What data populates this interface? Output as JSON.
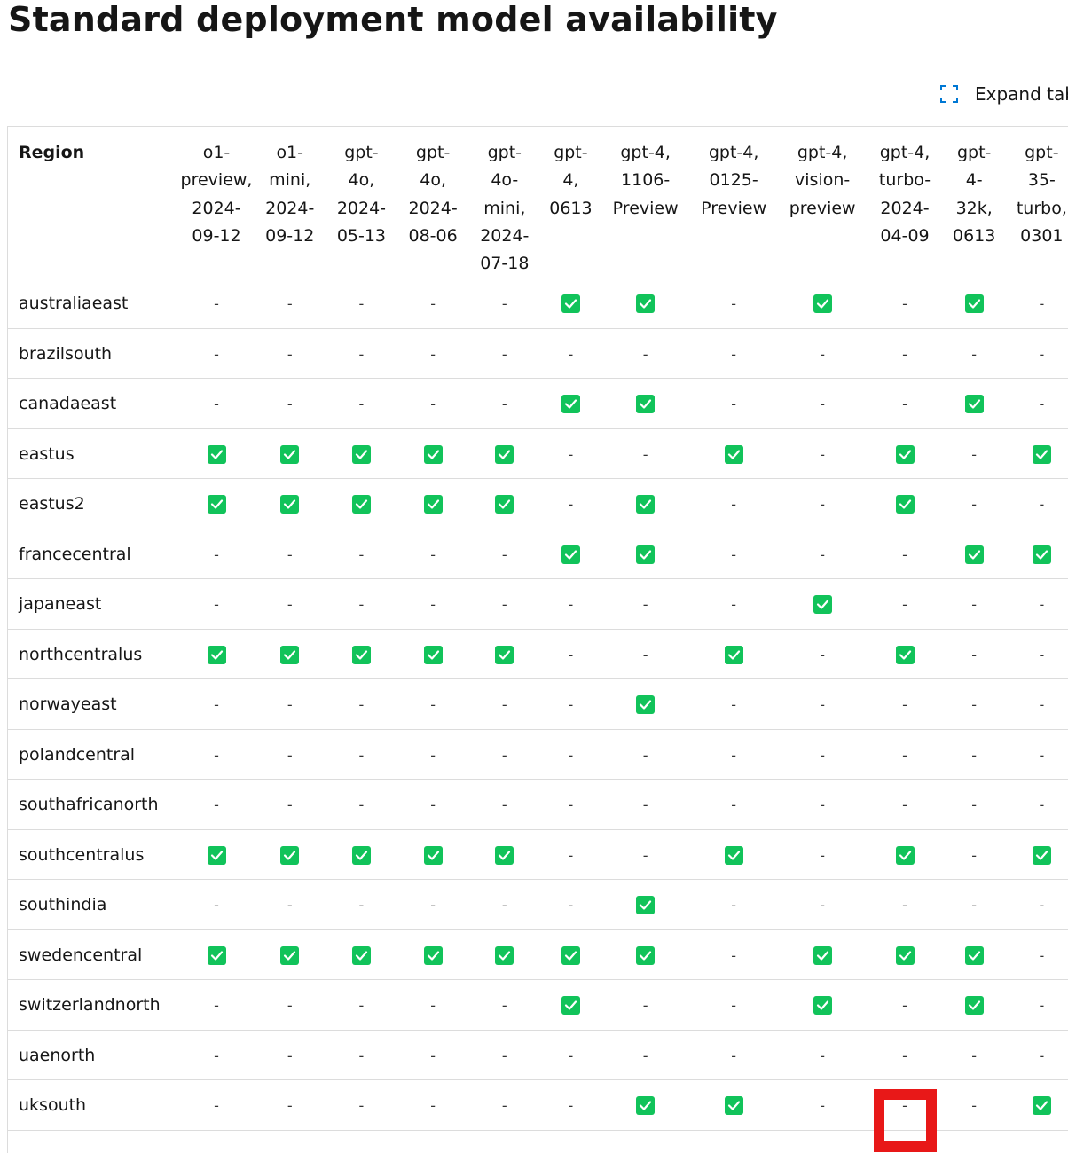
{
  "page": {
    "title": "Standard deployment model availability",
    "expand_label": "Expand table",
    "accent": "#0078d4",
    "check_color": "#11c35a",
    "highlight_color": "#e81818"
  },
  "table": {
    "region_header": "Region",
    "columns": [
      "o1-\npreview,\n2024-\n09-12",
      "o1-\nmini,\n2024-\n09-12",
      "gpt-\n4o,\n2024-\n05-13",
      "gpt-\n4o,\n2024-\n08-06",
      "gpt-\n4o-\nmini,\n2024-\n07-18",
      "gpt-\n4,\n0613",
      "gpt-4,\n1106-\nPreview",
      "gpt-4,\n0125-\nPreview",
      "gpt-4,\nvision-\npreview",
      "gpt-4,\nturbo-\n2024-\n04-09",
      "gpt-\n4-\n32k,\n0613",
      "gpt-\n35-\nturbo,\n0301"
    ],
    "unavailable_symbol": "-",
    "rows": [
      {
        "region": "australiaeast",
        "cells": [
          0,
          0,
          0,
          0,
          0,
          1,
          1,
          0,
          1,
          0,
          1,
          0
        ]
      },
      {
        "region": "brazilsouth",
        "cells": [
          0,
          0,
          0,
          0,
          0,
          0,
          0,
          0,
          0,
          0,
          0,
          0
        ]
      },
      {
        "region": "canadaeast",
        "cells": [
          0,
          0,
          0,
          0,
          0,
          1,
          1,
          0,
          0,
          0,
          1,
          0
        ]
      },
      {
        "region": "eastus",
        "cells": [
          1,
          1,
          1,
          1,
          1,
          0,
          0,
          1,
          0,
          1,
          0,
          1
        ]
      },
      {
        "region": "eastus2",
        "cells": [
          1,
          1,
          1,
          1,
          1,
          0,
          1,
          0,
          0,
          1,
          0,
          0
        ]
      },
      {
        "region": "francecentral",
        "cells": [
          0,
          0,
          0,
          0,
          0,
          1,
          1,
          0,
          0,
          0,
          1,
          1
        ]
      },
      {
        "region": "japaneast",
        "cells": [
          0,
          0,
          0,
          0,
          0,
          0,
          0,
          0,
          1,
          0,
          0,
          0
        ]
      },
      {
        "region": "northcentralus",
        "cells": [
          1,
          1,
          1,
          1,
          1,
          0,
          0,
          1,
          0,
          1,
          0,
          0
        ]
      },
      {
        "region": "norwayeast",
        "cells": [
          0,
          0,
          0,
          0,
          0,
          0,
          1,
          0,
          0,
          0,
          0,
          0
        ]
      },
      {
        "region": "polandcentral",
        "cells": [
          0,
          0,
          0,
          0,
          0,
          0,
          0,
          0,
          0,
          0,
          0,
          0
        ]
      },
      {
        "region": "southafricanorth",
        "cells": [
          0,
          0,
          0,
          0,
          0,
          0,
          0,
          0,
          0,
          0,
          0,
          0
        ]
      },
      {
        "region": "southcentralus",
        "cells": [
          1,
          1,
          1,
          1,
          1,
          0,
          0,
          1,
          0,
          1,
          0,
          1
        ]
      },
      {
        "region": "southindia",
        "cells": [
          0,
          0,
          0,
          0,
          0,
          0,
          1,
          0,
          0,
          0,
          0,
          0
        ]
      },
      {
        "region": "swedencentral",
        "cells": [
          1,
          1,
          1,
          1,
          1,
          1,
          1,
          0,
          1,
          1,
          1,
          0
        ]
      },
      {
        "region": "switzerlandnorth",
        "cells": [
          0,
          0,
          0,
          0,
          0,
          1,
          0,
          0,
          1,
          0,
          1,
          0
        ]
      },
      {
        "region": "uaenorth",
        "cells": [
          0,
          0,
          0,
          0,
          0,
          0,
          0,
          0,
          0,
          0,
          0,
          0
        ]
      },
      {
        "region": "uksouth",
        "cells": [
          0,
          0,
          0,
          0,
          0,
          0,
          1,
          1,
          0,
          0,
          0,
          1
        ]
      }
    ]
  }
}
